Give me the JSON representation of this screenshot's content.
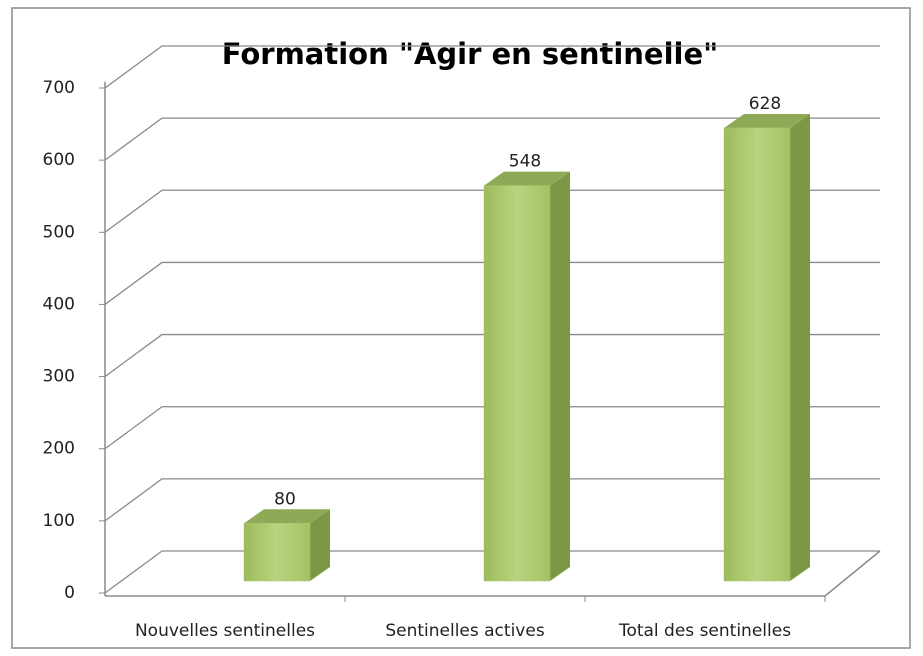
{
  "chart_data": {
    "type": "bar",
    "title": "Formation \"Agir en sentinelle\"",
    "categories": [
      "Nouvelles sentinelles",
      "Sentinelles actives",
      "Total des sentinelles"
    ],
    "values": [
      80,
      548,
      628
    ],
    "color": "#a9c76c",
    "ylim": [
      0,
      700
    ],
    "yticks": [
      0,
      100,
      200,
      300,
      400,
      500,
      600,
      700
    ],
    "grid": true
  }
}
